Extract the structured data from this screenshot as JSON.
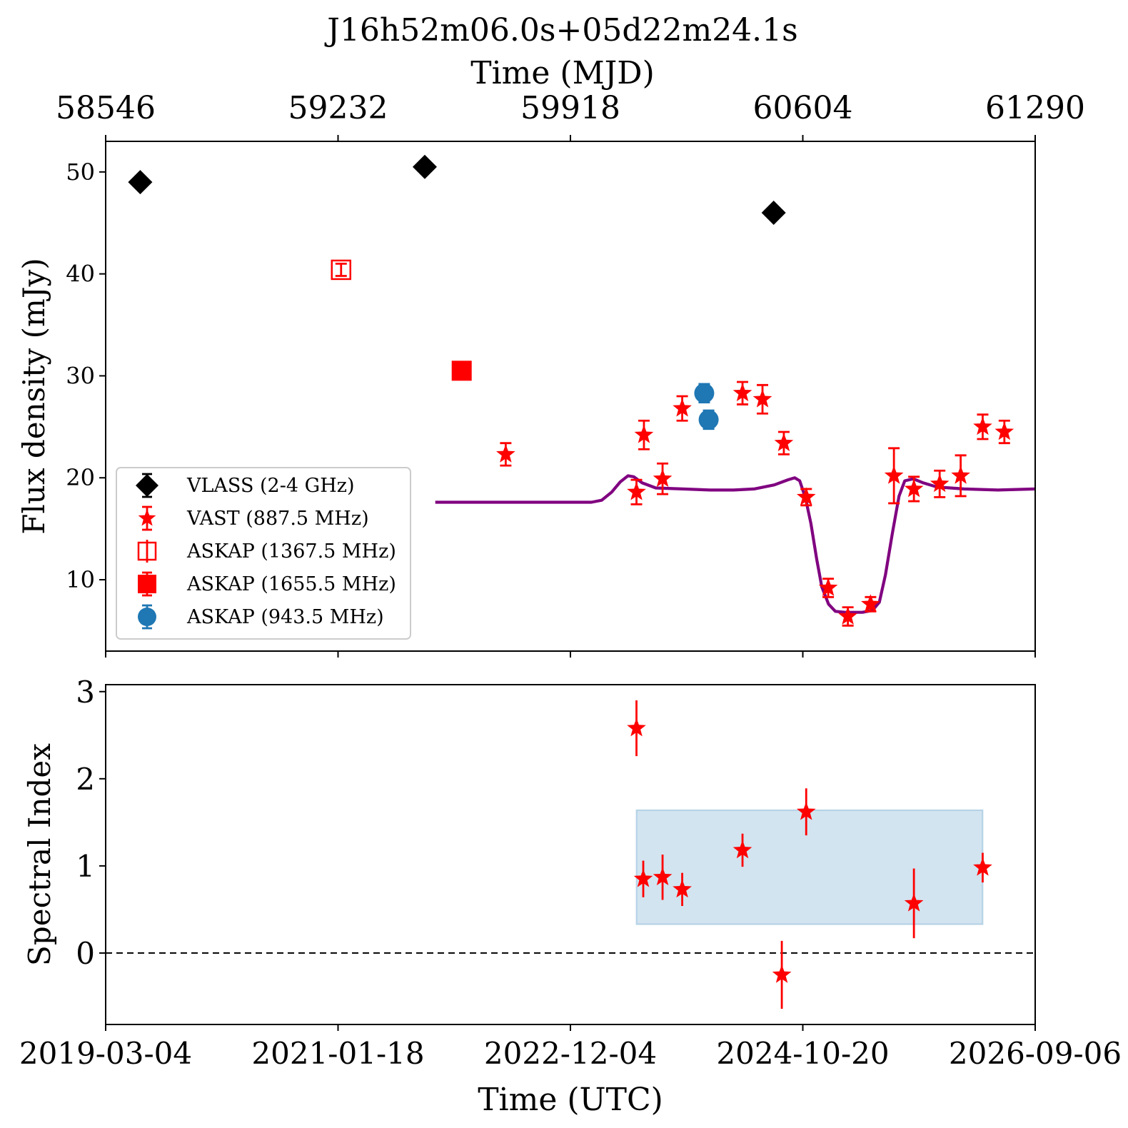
{
  "chart_data": [
    {
      "type": "scatter",
      "title": "J16h52m06.0s+05d22m24.1s",
      "top_axis": {
        "label": "Time (MJD)",
        "ticks": [
          "58546",
          "59232",
          "59918",
          "60604",
          "61290"
        ]
      },
      "xlabel": "",
      "ylabel": "Flux density (mJy)",
      "xlim_mjd": [
        58546,
        61290
      ],
      "ylim": [
        3,
        53
      ],
      "yticks": [
        10,
        20,
        30,
        40,
        50
      ],
      "grid": false,
      "legend_placement": "lower-left",
      "series": [
        {
          "name": "VLASS (2-4 GHz)",
          "marker": "diamond",
          "color": "#000000",
          "points": [
            [
              58648,
              49.0,
              0.3
            ],
            [
              59488,
              50.5,
              0.3
            ],
            [
              60518,
              46.0,
              0.3
            ]
          ]
        },
        {
          "name": "VAST (887.5 MHz)",
          "marker": "star",
          "color": "#ff0000",
          "points": [
            [
              59727,
              22.3,
              1.1
            ],
            [
              60113,
              18.6,
              1.2
            ],
            [
              60135,
              24.2,
              1.4
            ],
            [
              60190,
              19.9,
              1.5
            ],
            [
              60248,
              26.8,
              1.2
            ],
            [
              60426,
              28.3,
              1.1
            ],
            [
              60485,
              27.7,
              1.4
            ],
            [
              60548,
              23.4,
              1.1
            ],
            [
              60614,
              18.1,
              0.8
            ],
            [
              60679,
              9.2,
              0.9
            ],
            [
              60737,
              6.4,
              0.9
            ],
            [
              60804,
              7.6,
              0.7
            ],
            [
              60873,
              20.2,
              2.7
            ],
            [
              60932,
              18.9,
              1.2
            ],
            [
              61008,
              19.4,
              1.3
            ],
            [
              61070,
              20.2,
              2.0
            ],
            [
              61135,
              25.0,
              1.2
            ],
            [
              61199,
              24.5,
              1.1
            ]
          ]
        },
        {
          "name": "ASKAP (1367.5 MHz)",
          "marker": "square-open",
          "color": "#ff0000",
          "points": [
            [
              59241,
              40.4,
              0.6
            ]
          ]
        },
        {
          "name": "ASKAP (1655.5 MHz)",
          "marker": "square",
          "color": "#ff0000",
          "points": [
            [
              59597,
              30.5,
              0.3
            ]
          ]
        },
        {
          "name": "ASKAP (943.5 MHz)",
          "marker": "circle",
          "color": "#1f77b4",
          "points": [
            [
              60313,
              28.3,
              0.9
            ],
            [
              60326,
              25.7,
              0.9
            ]
          ]
        }
      ],
      "model_curve": {
        "color": "#800080",
        "points": [
          [
            59519,
            17.6
          ],
          [
            59700,
            17.6
          ],
          [
            59900,
            17.6
          ],
          [
            59980,
            17.6
          ],
          [
            60010,
            17.8
          ],
          [
            60040,
            18.6
          ],
          [
            60065,
            19.6
          ],
          [
            60088,
            20.2
          ],
          [
            60105,
            20.1
          ],
          [
            60130,
            19.5
          ],
          [
            60170,
            19.0
          ],
          [
            60250,
            18.9
          ],
          [
            60330,
            18.8
          ],
          [
            60400,
            18.8
          ],
          [
            60460,
            18.9
          ],
          [
            60520,
            19.3
          ],
          [
            60560,
            19.8
          ],
          [
            60580,
            20.0
          ],
          [
            60595,
            19.7
          ],
          [
            60612,
            18.0
          ],
          [
            60628,
            15.5
          ],
          [
            60645,
            12.0
          ],
          [
            60660,
            9.3
          ],
          [
            60680,
            7.6
          ],
          [
            60700,
            6.9
          ],
          [
            60730,
            6.8
          ],
          [
            60780,
            6.8
          ],
          [
            60810,
            7.0
          ],
          [
            60830,
            7.8
          ],
          [
            60848,
            10.5
          ],
          [
            60868,
            14.5
          ],
          [
            60888,
            18.2
          ],
          [
            60905,
            19.7
          ],
          [
            60930,
            19.9
          ],
          [
            60960,
            19.5
          ],
          [
            61000,
            19.1
          ],
          [
            61080,
            18.9
          ],
          [
            61180,
            18.8
          ],
          [
            61290,
            18.9
          ]
        ]
      }
    },
    {
      "type": "scatter",
      "xlabel": "Time (UTC)",
      "ylabel": "Spectral Index",
      "xlim_mjd": [
        58546,
        61290
      ],
      "xticks": [
        "2019-03-04",
        "2021-01-18",
        "2022-12-04",
        "2024-10-20",
        "2026-09-06"
      ],
      "ylim": [
        -0.82,
        3.08
      ],
      "yticks": [
        0,
        1,
        2,
        3
      ],
      "reference_line_y": 0,
      "band": {
        "x": [
          60113,
          61135
        ],
        "y": [
          0.33,
          1.64
        ],
        "color": "#1f77b4"
      },
      "series": [
        {
          "name": "",
          "marker": "star",
          "color": "#ff0000",
          "points": [
            [
              60113,
              2.58,
              0.32
            ],
            [
              60133,
              0.85,
              0.21
            ],
            [
              60190,
              0.87,
              0.26
            ],
            [
              60248,
              0.73,
              0.19
            ],
            [
              60426,
              1.18,
              0.19
            ],
            [
              60542,
              -0.25,
              0.39
            ],
            [
              60614,
              1.62,
              0.27
            ],
            [
              60932,
              0.57,
              0.4
            ],
            [
              61135,
              0.98,
              0.17
            ]
          ]
        }
      ]
    }
  ]
}
